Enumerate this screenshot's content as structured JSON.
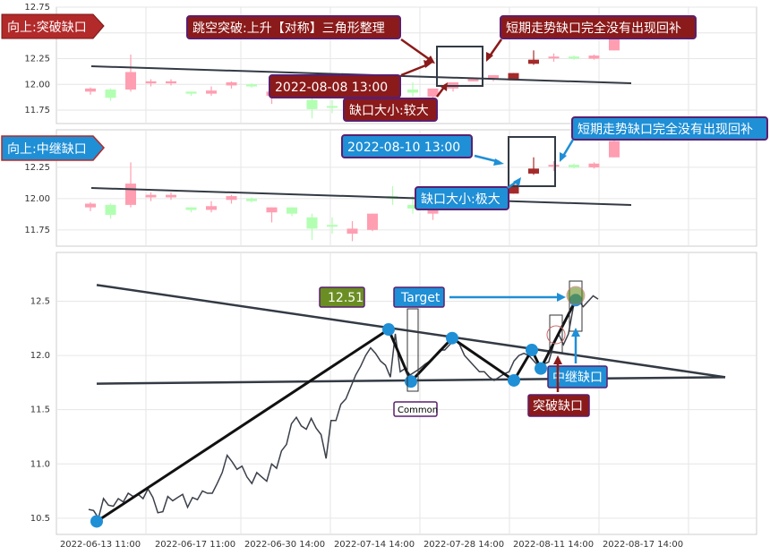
{
  "colors": {
    "up": "#ff9eb1",
    "down": "#b2ffb2",
    "up_dark": "#a52a2a",
    "trendline": "#333a44",
    "price_line": "#3a3f4a",
    "blue": "#1f8fd6",
    "dark_red": "#8b1a1a",
    "purple_border": "#5a1f6e",
    "olive": "#6b8e23"
  },
  "panel1": {
    "badge": "向上:突破缺口",
    "y_ticks": [
      "12.75",
      "12.50",
      "12.25",
      "12.00",
      "11.75"
    ],
    "annotations": {
      "pattern": "跳空突破:上升【对称】三角形整理",
      "no_fill": "短期走势缺口完全没有出现回补",
      "time": "2022-08-08 13:00",
      "size": "缺口大小:较大"
    }
  },
  "panel2": {
    "badge": "向上:中继缺口",
    "y_ticks": [
      "12.25",
      "12.00",
      "11.75"
    ],
    "annotations": {
      "time": "2022-08-10 13:00",
      "no_fill": "短期走势缺口完全没有出现回补",
      "size": "缺口大小:极大"
    }
  },
  "panel3": {
    "y_ticks": [
      "12.5",
      "12.0",
      "11.5",
      "11.0",
      "10.5"
    ],
    "labels": {
      "value_box": "12.51",
      "target": "Target",
      "common": "Common",
      "relay_gap": "中继缺口",
      "breakout_gap": "突破缺口"
    }
  },
  "x_ticks": [
    "2022-06-13 11:00",
    "2022-06-17 11:00",
    "2022-06-30 14:00",
    "2022-07-14 14:00",
    "2022-07-28 14:00",
    "2022-08-11 14:00",
    "2022-08-17 14:00"
  ],
  "chart_data": [
    {
      "type": "candlestick",
      "title": "向上:突破缺口",
      "ylim": [
        11.62,
        12.75
      ],
      "candles": [
        {
          "o": 11.93,
          "h": 11.97,
          "l": 11.9,
          "c": 11.96,
          "up": true
        },
        {
          "o": 11.95,
          "h": 11.96,
          "l": 11.84,
          "c": 11.87,
          "up": false
        },
        {
          "o": 11.95,
          "h": 12.29,
          "l": 11.93,
          "c": 12.12,
          "up": true
        },
        {
          "o": 12.01,
          "h": 12.05,
          "l": 11.98,
          "c": 12.03,
          "up": true
        },
        {
          "o": 12.01,
          "h": 12.05,
          "l": 11.99,
          "c": 12.03,
          "up": true
        },
        {
          "o": 11.93,
          "h": 11.93,
          "l": 11.89,
          "c": 11.91,
          "up": false
        },
        {
          "o": 11.91,
          "h": 11.98,
          "l": 11.89,
          "c": 11.94,
          "up": true
        },
        {
          "o": 11.99,
          "h": 12.03,
          "l": 11.96,
          "c": 12.02,
          "up": true
        },
        {
          "o": 12.0,
          "h": 12.01,
          "l": 11.97,
          "c": 11.98,
          "up": false
        },
        {
          "o": 11.89,
          "h": 11.93,
          "l": 11.81,
          "c": 11.93,
          "up": true
        },
        {
          "o": 11.93,
          "h": 11.93,
          "l": 11.86,
          "c": 11.88,
          "up": false
        },
        {
          "o": 11.85,
          "h": 11.88,
          "l": 11.67,
          "c": 11.76,
          "up": false
        },
        {
          "o": 11.79,
          "h": 11.85,
          "l": 11.72,
          "c": 11.79,
          "up": false
        },
        {
          "o": 11.76,
          "h": 11.82,
          "l": 11.66,
          "c": 11.72,
          "up": true
        },
        {
          "o": 11.75,
          "h": 11.88,
          "l": 11.74,
          "c": 11.88,
          "up": true
        },
        {
          "o": 12.02,
          "h": 12.1,
          "l": 11.95,
          "c": 12.0,
          "up": false
        },
        {
          "o": 11.95,
          "h": 12.02,
          "l": 11.88,
          "c": 11.92,
          "up": false
        },
        {
          "o": 11.88,
          "h": 11.96,
          "l": 11.83,
          "c": 11.96,
          "up": true
        },
        {
          "o": 11.96,
          "h": 12.02,
          "l": 11.93,
          "c": 12.02,
          "up": true
        },
        {
          "o": 12.03,
          "h": 12.06,
          "l": 12.03,
          "c": 12.06,
          "up": true
        },
        {
          "o": 12.06,
          "h": 12.09,
          "l": 12.03,
          "c": 12.09,
          "up": true
        },
        {
          "o": 12.04,
          "h": 12.11,
          "l": 12.04,
          "c": 12.11,
          "up": true,
          "dark": true
        },
        {
          "o": 12.2,
          "h": 12.33,
          "l": 12.19,
          "c": 12.24,
          "up": true,
          "dark": true
        },
        {
          "o": 12.26,
          "h": 12.3,
          "l": 12.22,
          "c": 12.27,
          "up": true
        },
        {
          "o": 12.27,
          "h": 12.28,
          "l": 12.24,
          "c": 12.25,
          "up": false
        },
        {
          "o": 12.25,
          "h": 12.29,
          "l": 12.24,
          "c": 12.28,
          "up": true
        },
        {
          "o": 12.33,
          "h": 12.5,
          "l": 12.33,
          "c": 12.46,
          "up": true
        }
      ],
      "trendline": [
        [
          12.15,
          12.15
        ],
        [
          11.97,
          11.97
        ]
      ]
    },
    {
      "type": "candlestick",
      "title": "向上:中继缺口",
      "ylim": [
        11.62,
        12.55
      ],
      "candles_note": "same series as panel 1, gap highlighted near 2022-08-10 13:00"
    },
    {
      "type": "line",
      "title": "",
      "xlabel": "",
      "ylabel": "",
      "ylim": [
        10.35,
        12.95
      ],
      "x_tick_labels": [
        "2022-06-13 11:00",
        "2022-06-17 11:00",
        "2022-06-30 14:00",
        "2022-07-14 14:00",
        "2022-07-28 14:00",
        "2022-08-11 14:00",
        "2022-08-17 14:00"
      ],
      "series": [
        {
          "values": [
            10.58,
            10.57,
            10.5,
            10.68,
            10.62,
            10.61,
            10.68,
            10.65,
            10.73,
            10.7,
            10.72,
            10.68,
            10.77,
            10.69,
            10.55,
            10.56,
            10.7,
            10.66,
            10.69,
            10.72,
            10.6,
            10.69,
            10.67,
            10.75,
            10.73,
            10.73,
            10.82,
            10.92,
            11.08,
            11.02,
            10.95,
            10.98,
            10.88,
            10.82,
            10.92,
            10.88,
            10.84,
            11.0,
            10.96,
            11.12,
            11.18,
            11.37,
            11.43,
            11.35,
            11.32,
            11.42,
            11.33,
            11.27,
            11.05,
            11.4,
            11.4,
            11.55,
            11.6,
            11.71,
            11.82,
            11.9,
            12.0,
            12.07,
            12.02,
            11.95,
            11.91,
            11.8,
            12.2,
            11.85,
            11.88,
            11.82,
            11.85,
            11.88,
            11.92,
            11.95,
            12.0,
            12.05,
            12.05,
            12.1,
            12.15,
            12.1,
            12.0,
            11.95,
            11.9,
            11.85,
            11.85,
            11.8,
            11.77,
            11.8,
            11.83,
            11.85,
            11.95,
            12.0,
            12.02,
            12.0,
            11.95,
            11.9,
            11.92,
            11.94,
            12.1,
            12.2,
            12.1,
            12.2,
            12.45,
            12.51,
            12.45,
            12.5,
            12.55,
            12.52
          ]
        }
      ],
      "pivots": [
        {
          "label": "start",
          "value": 10.47
        },
        {
          "label": "peak1",
          "value": 12.24
        },
        {
          "label": "trough1",
          "value": 11.76
        },
        {
          "label": "peak2",
          "value": 12.16
        },
        {
          "label": "trough2",
          "value": 11.77
        },
        {
          "label": "peak3",
          "value": 12.05
        },
        {
          "label": "trough3",
          "value": 11.88
        },
        {
          "label": "end",
          "value": 12.51
        }
      ],
      "triangle_upper": [
        12.65,
        11.8
      ],
      "triangle_lower": [
        11.74,
        11.8
      ]
    }
  ]
}
